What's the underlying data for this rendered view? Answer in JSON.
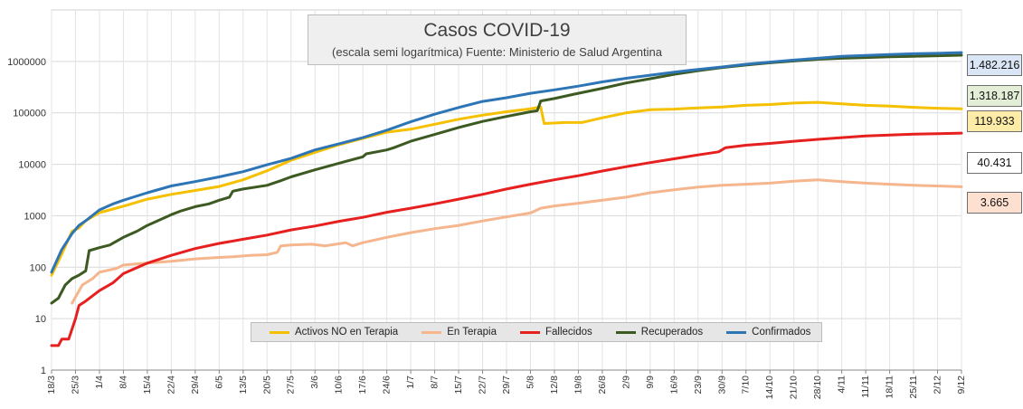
{
  "chart_data": {
    "type": "line",
    "title": "Casos COVID-19",
    "subtitle": "(escala semi logarítmica) Fuente: Ministerio de Salud  Argentina",
    "yscale": "log",
    "ylim": [
      1,
      10000000
    ],
    "yticks": [
      1,
      10,
      100,
      1000,
      10000,
      100000,
      1000000
    ],
    "ytick_labels": [
      "1",
      "10",
      "100",
      "1000",
      "10000",
      "100000",
      "1000000"
    ],
    "x_day_range": [
      0,
      266
    ],
    "xticks": [
      {
        "day": 0,
        "label": "18/3"
      },
      {
        "day": 7,
        "label": "25/3"
      },
      {
        "day": 14,
        "label": "1/4"
      },
      {
        "day": 21,
        "label": "8/4"
      },
      {
        "day": 28,
        "label": "15/4"
      },
      {
        "day": 35,
        "label": "22/4"
      },
      {
        "day": 42,
        "label": "29/4"
      },
      {
        "day": 49,
        "label": "6/5"
      },
      {
        "day": 56,
        "label": "13/5"
      },
      {
        "day": 63,
        "label": "20/5"
      },
      {
        "day": 70,
        "label": "27/5"
      },
      {
        "day": 77,
        "label": "3/6"
      },
      {
        "day": 84,
        "label": "10/6"
      },
      {
        "day": 91,
        "label": "17/6"
      },
      {
        "day": 98,
        "label": "24/6"
      },
      {
        "day": 105,
        "label": "1/7"
      },
      {
        "day": 112,
        "label": "8/7"
      },
      {
        "day": 119,
        "label": "15/7"
      },
      {
        "day": 126,
        "label": "22/7"
      },
      {
        "day": 133,
        "label": "29/7"
      },
      {
        "day": 140,
        "label": "5/8"
      },
      {
        "day": 147,
        "label": "12/8"
      },
      {
        "day": 154,
        "label": "19/8"
      },
      {
        "day": 161,
        "label": "26/8"
      },
      {
        "day": 168,
        "label": "2/9"
      },
      {
        "day": 175,
        "label": "9/9"
      },
      {
        "day": 182,
        "label": "16/9"
      },
      {
        "day": 189,
        "label": "23/9"
      },
      {
        "day": 196,
        "label": "30/9"
      },
      {
        "day": 203,
        "label": "7/10"
      },
      {
        "day": 210,
        "label": "14/10"
      },
      {
        "day": 217,
        "label": "21/10"
      },
      {
        "day": 224,
        "label": "28/10"
      },
      {
        "day": 231,
        "label": "4/11"
      },
      {
        "day": 238,
        "label": "11/11"
      },
      {
        "day": 245,
        "label": "18/11"
      },
      {
        "day": 252,
        "label": "25/11"
      },
      {
        "day": 259,
        "label": "2/12"
      },
      {
        "day": 266,
        "label": "9/12"
      }
    ],
    "series": [
      {
        "name": "Activos NO en Terapia",
        "color": "#f5c000",
        "last_value_label": "119.933",
        "label_bg": "#fdeba8",
        "points": [
          [
            0,
            70
          ],
          [
            3,
            180
          ],
          [
            6,
            500
          ],
          [
            8,
            580
          ],
          [
            10,
            800
          ],
          [
            14,
            1150
          ],
          [
            18,
            1350
          ],
          [
            22,
            1600
          ],
          [
            28,
            2100
          ],
          [
            35,
            2600
          ],
          [
            42,
            3100
          ],
          [
            49,
            3700
          ],
          [
            56,
            5000
          ],
          [
            63,
            7500
          ],
          [
            70,
            12000
          ],
          [
            77,
            17000
          ],
          [
            84,
            24000
          ],
          [
            91,
            32000
          ],
          [
            98,
            42000
          ],
          [
            105,
            48000
          ],
          [
            112,
            60000
          ],
          [
            119,
            75000
          ],
          [
            126,
            90000
          ],
          [
            133,
            105000
          ],
          [
            140,
            120000
          ],
          [
            143,
            130000
          ],
          [
            144,
            62000
          ],
          [
            150,
            65000
          ],
          [
            155,
            65000
          ],
          [
            161,
            80000
          ],
          [
            168,
            100000
          ],
          [
            175,
            115000
          ],
          [
            182,
            118000
          ],
          [
            189,
            125000
          ],
          [
            196,
            130000
          ],
          [
            203,
            140000
          ],
          [
            210,
            145000
          ],
          [
            217,
            155000
          ],
          [
            224,
            160000
          ],
          [
            231,
            150000
          ],
          [
            238,
            140000
          ],
          [
            245,
            135000
          ],
          [
            252,
            128000
          ],
          [
            259,
            123000
          ],
          [
            266,
            119933
          ]
        ]
      },
      {
        "name": "En Terapia",
        "color": "#f5b58d",
        "last_value_label": "3.665",
        "label_bg": "#fde0cf",
        "points": [
          [
            6,
            20
          ],
          [
            9,
            45
          ],
          [
            12,
            60
          ],
          [
            14,
            80
          ],
          [
            19,
            95
          ],
          [
            21,
            110
          ],
          [
            28,
            120
          ],
          [
            35,
            130
          ],
          [
            42,
            145
          ],
          [
            49,
            155
          ],
          [
            53,
            160
          ],
          [
            58,
            170
          ],
          [
            63,
            175
          ],
          [
            66,
            195
          ],
          [
            67,
            260
          ],
          [
            70,
            270
          ],
          [
            76,
            280
          ],
          [
            80,
            260
          ],
          [
            84,
            285
          ],
          [
            86,
            300
          ],
          [
            88,
            260
          ],
          [
            91,
            300
          ],
          [
            98,
            380
          ],
          [
            105,
            470
          ],
          [
            112,
            560
          ],
          [
            119,
            650
          ],
          [
            126,
            790
          ],
          [
            133,
            950
          ],
          [
            140,
            1130
          ],
          [
            143,
            1400
          ],
          [
            147,
            1550
          ],
          [
            154,
            1750
          ],
          [
            161,
            2000
          ],
          [
            168,
            2300
          ],
          [
            175,
            2800
          ],
          [
            182,
            3200
          ],
          [
            189,
            3600
          ],
          [
            196,
            3900
          ],
          [
            203,
            4100
          ],
          [
            210,
            4300
          ],
          [
            217,
            4700
          ],
          [
            224,
            5000
          ],
          [
            231,
            4600
          ],
          [
            238,
            4300
          ],
          [
            245,
            4100
          ],
          [
            252,
            3900
          ],
          [
            259,
            3800
          ],
          [
            266,
            3665
          ]
        ]
      },
      {
        "name": "Fallecidos",
        "color": "#e61f1f",
        "last_value_label": "40.431",
        "label_bg": "#ffffff",
        "points": [
          [
            0,
            3
          ],
          [
            2,
            3
          ],
          [
            3,
            4
          ],
          [
            5,
            4
          ],
          [
            7,
            10
          ],
          [
            8,
            18
          ],
          [
            10,
            22
          ],
          [
            14,
            35
          ],
          [
            18,
            50
          ],
          [
            21,
            75
          ],
          [
            28,
            120
          ],
          [
            35,
            170
          ],
          [
            42,
            230
          ],
          [
            49,
            290
          ],
          [
            56,
            350
          ],
          [
            63,
            420
          ],
          [
            70,
            530
          ],
          [
            77,
            630
          ],
          [
            84,
            780
          ],
          [
            91,
            930
          ],
          [
            98,
            1170
          ],
          [
            105,
            1400
          ],
          [
            112,
            1700
          ],
          [
            119,
            2100
          ],
          [
            126,
            2600
          ],
          [
            133,
            3300
          ],
          [
            140,
            4100
          ],
          [
            147,
            5000
          ],
          [
            154,
            6000
          ],
          [
            161,
            7400
          ],
          [
            168,
            9000
          ],
          [
            175,
            10800
          ],
          [
            182,
            12800
          ],
          [
            189,
            15200
          ],
          [
            195,
            17500
          ],
          [
            197,
            21000
          ],
          [
            203,
            23500
          ],
          [
            210,
            25500
          ],
          [
            217,
            28000
          ],
          [
            224,
            30500
          ],
          [
            231,
            33000
          ],
          [
            238,
            35500
          ],
          [
            245,
            37000
          ],
          [
            252,
            38500
          ],
          [
            259,
            39500
          ],
          [
            266,
            40431
          ]
        ]
      },
      {
        "name": "Recuperados",
        "color": "#3c5a21",
        "last_value_label": "1.318.187",
        "label_bg": "#e2efd6",
        "points": [
          [
            0,
            20
          ],
          [
            2,
            25
          ],
          [
            4,
            45
          ],
          [
            6,
            60
          ],
          [
            8,
            70
          ],
          [
            10,
            85
          ],
          [
            11,
            210
          ],
          [
            14,
            240
          ],
          [
            17,
            270
          ],
          [
            21,
            380
          ],
          [
            25,
            500
          ],
          [
            28,
            650
          ],
          [
            32,
            850
          ],
          [
            35,
            1050
          ],
          [
            38,
            1250
          ],
          [
            42,
            1500
          ],
          [
            46,
            1700
          ],
          [
            49,
            2000
          ],
          [
            52,
            2300
          ],
          [
            53,
            3000
          ],
          [
            56,
            3300
          ],
          [
            63,
            3900
          ],
          [
            67,
            4800
          ],
          [
            70,
            5700
          ],
          [
            77,
            7800
          ],
          [
            84,
            10500
          ],
          [
            91,
            14000
          ],
          [
            92,
            16000
          ],
          [
            98,
            19000
          ],
          [
            100,
            21000
          ],
          [
            105,
            28000
          ],
          [
            112,
            38000
          ],
          [
            119,
            52000
          ],
          [
            126,
            68000
          ],
          [
            133,
            85000
          ],
          [
            140,
            105000
          ],
          [
            142,
            110000
          ],
          [
            143,
            170000
          ],
          [
            147,
            190000
          ],
          [
            154,
            240000
          ],
          [
            161,
            300000
          ],
          [
            168,
            380000
          ],
          [
            175,
            460000
          ],
          [
            182,
            560000
          ],
          [
            189,
            660000
          ],
          [
            196,
            760000
          ],
          [
            203,
            850000
          ],
          [
            210,
            940000
          ],
          [
            217,
            1020000
          ],
          [
            224,
            1100000
          ],
          [
            231,
            1150000
          ],
          [
            238,
            1190000
          ],
          [
            245,
            1230000
          ],
          [
            252,
            1260000
          ],
          [
            259,
            1290000
          ],
          [
            266,
            1318187
          ]
        ]
      },
      {
        "name": "Confirmados",
        "color": "#2e75b6",
        "last_value_label": "1.482.216",
        "label_bg": "#dae6f5",
        "points": [
          [
            0,
            80
          ],
          [
            3,
            220
          ],
          [
            6,
            450
          ],
          [
            8,
            650
          ],
          [
            10,
            800
          ],
          [
            14,
            1300
          ],
          [
            18,
            1700
          ],
          [
            21,
            2000
          ],
          [
            28,
            2800
          ],
          [
            35,
            3800
          ],
          [
            42,
            4600
          ],
          [
            49,
            5700
          ],
          [
            56,
            7200
          ],
          [
            63,
            9800
          ],
          [
            70,
            13000
          ],
          [
            77,
            19000
          ],
          [
            84,
            25000
          ],
          [
            91,
            33000
          ],
          [
            98,
            46000
          ],
          [
            105,
            67000
          ],
          [
            112,
            94000
          ],
          [
            119,
            127000
          ],
          [
            126,
            167000
          ],
          [
            133,
            197000
          ],
          [
            140,
            240000
          ],
          [
            147,
            280000
          ],
          [
            154,
            330000
          ],
          [
            161,
            400000
          ],
          [
            168,
            470000
          ],
          [
            175,
            540000
          ],
          [
            182,
            620000
          ],
          [
            189,
            700000
          ],
          [
            196,
            780000
          ],
          [
            203,
            880000
          ],
          [
            210,
            970000
          ],
          [
            217,
            1060000
          ],
          [
            224,
            1150000
          ],
          [
            231,
            1250000
          ],
          [
            238,
            1310000
          ],
          [
            245,
            1360000
          ],
          [
            252,
            1410000
          ],
          [
            259,
            1440000
          ],
          [
            266,
            1482216
          ]
        ]
      }
    ]
  }
}
